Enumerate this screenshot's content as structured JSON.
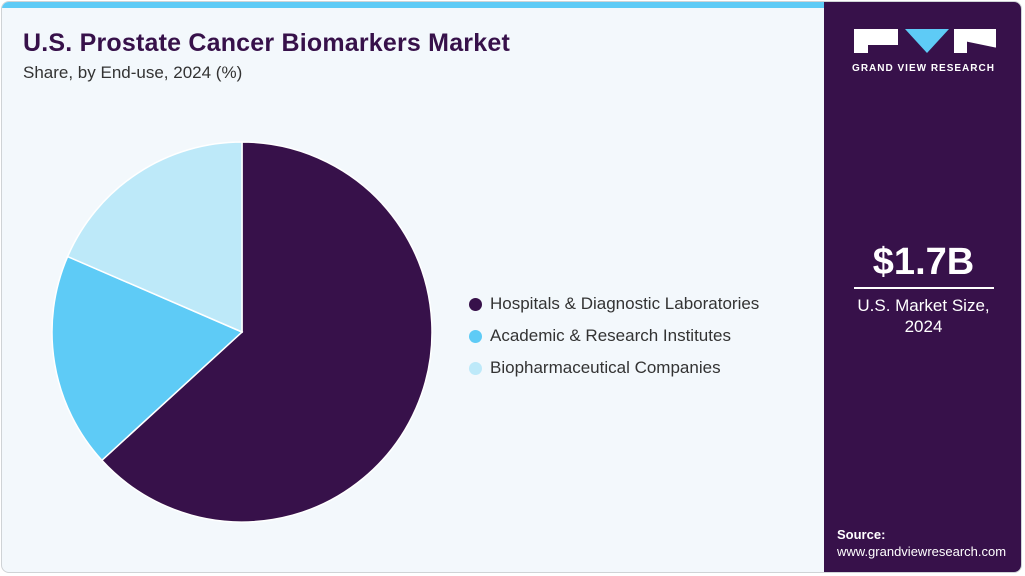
{
  "header": {
    "title": "U.S. Prostate Cancer Biomarkers Market",
    "subtitle": "Share, by End-use, 2024 (%)"
  },
  "colors": {
    "hospitals": "#37114a",
    "academic": "#5ecbf6",
    "biopharma": "#bde9f9",
    "accent_bar": "#5ecbf6",
    "panel": "#37114a",
    "background": "#f3f8fc"
  },
  "legend": [
    {
      "label": "Hospitals & Diagnostic Laboratories",
      "color": "#37114a"
    },
    {
      "label": "Academic & Research Institutes",
      "color": "#5ecbf6"
    },
    {
      "label": "Biopharmaceutical Companies",
      "color": "#bde9f9"
    }
  ],
  "side_panel": {
    "logo_text": "GRAND VIEW RESEARCH",
    "market_size": "$1.7B",
    "market_size_label_line1": "U.S. Market Size,",
    "market_size_label_line2": "2024",
    "source_label": "Source:",
    "source_url": "www.grandviewresearch.com"
  },
  "chart_data": {
    "type": "pie",
    "title": "U.S. Prostate Cancer Biomarkers Market",
    "subtitle": "Share, by End-use, 2024 (%)",
    "categories": [
      "Hospitals & Diagnostic Laboratories",
      "Academic & Research Institutes",
      "Biopharmaceutical Companies"
    ],
    "values": [
      63.2,
      18.3,
      18.5
    ],
    "colors": [
      "#37114a",
      "#5ecbf6",
      "#bde9f9"
    ],
    "start_angle": "12 o'clock, clockwise",
    "legend_position": "right",
    "data_labels": false
  }
}
